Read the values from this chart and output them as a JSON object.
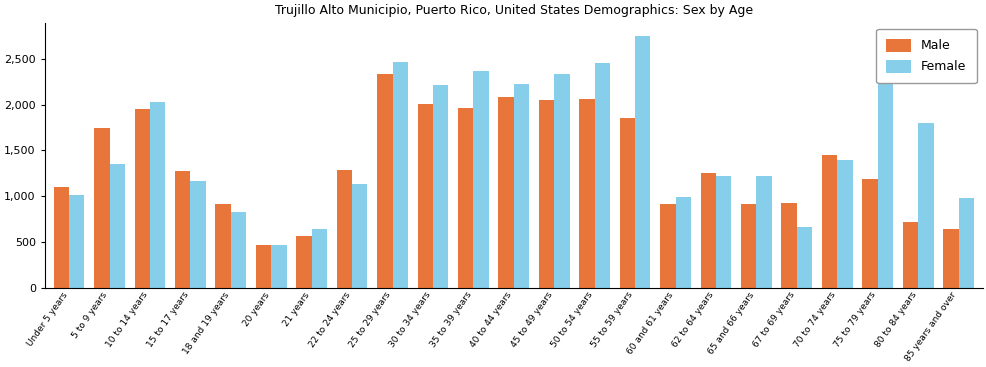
{
  "title": "Trujillo Alto Municipio, Puerto Rico, United States Demographics: Sex by Age",
  "categories": [
    "Under 5 years",
    "5 to 9 years",
    "10 to 14 years",
    "15 to 17 years",
    "18 and 19 years",
    "20 years",
    "21 years",
    "22 to 24 years",
    "25 to 29 years",
    "30 to 34 years",
    "35 to 39 years",
    "40 to 44 years",
    "45 to 49 years",
    "50 to 54 years",
    "55 to 59 years",
    "60 and 61 years",
    "62 to 64 years",
    "65 and 66 years",
    "67 to 69 years",
    "70 to 74 years",
    "75 to 79 years",
    "80 to 84 years",
    "85 years and over"
  ],
  "male": [
    1100,
    1750,
    1950,
    1270,
    910,
    470,
    560,
    1285,
    2335,
    2005,
    1965,
    2090,
    2055,
    2060,
    1855,
    910,
    1255,
    910,
    920,
    1455,
    1185,
    720,
    645
  ],
  "female": [
    1015,
    1355,
    2030,
    1170,
    830,
    465,
    640,
    1130,
    2465,
    2215,
    2365,
    2225,
    2340,
    2460,
    2750,
    990,
    1215,
    1215,
    660,
    1390,
    2255,
    1800,
    985
  ],
  "male_color": "#E8763A",
  "female_color": "#87CEEB",
  "bar_width": 0.38,
  "ylim": [
    0,
    2900
  ],
  "yticks": [
    0,
    500,
    1000,
    1500,
    2000,
    2500
  ],
  "legend_labels": [
    "Male",
    "Female"
  ],
  "figure_size": [
    9.87,
    3.67
  ],
  "dpi": 100
}
